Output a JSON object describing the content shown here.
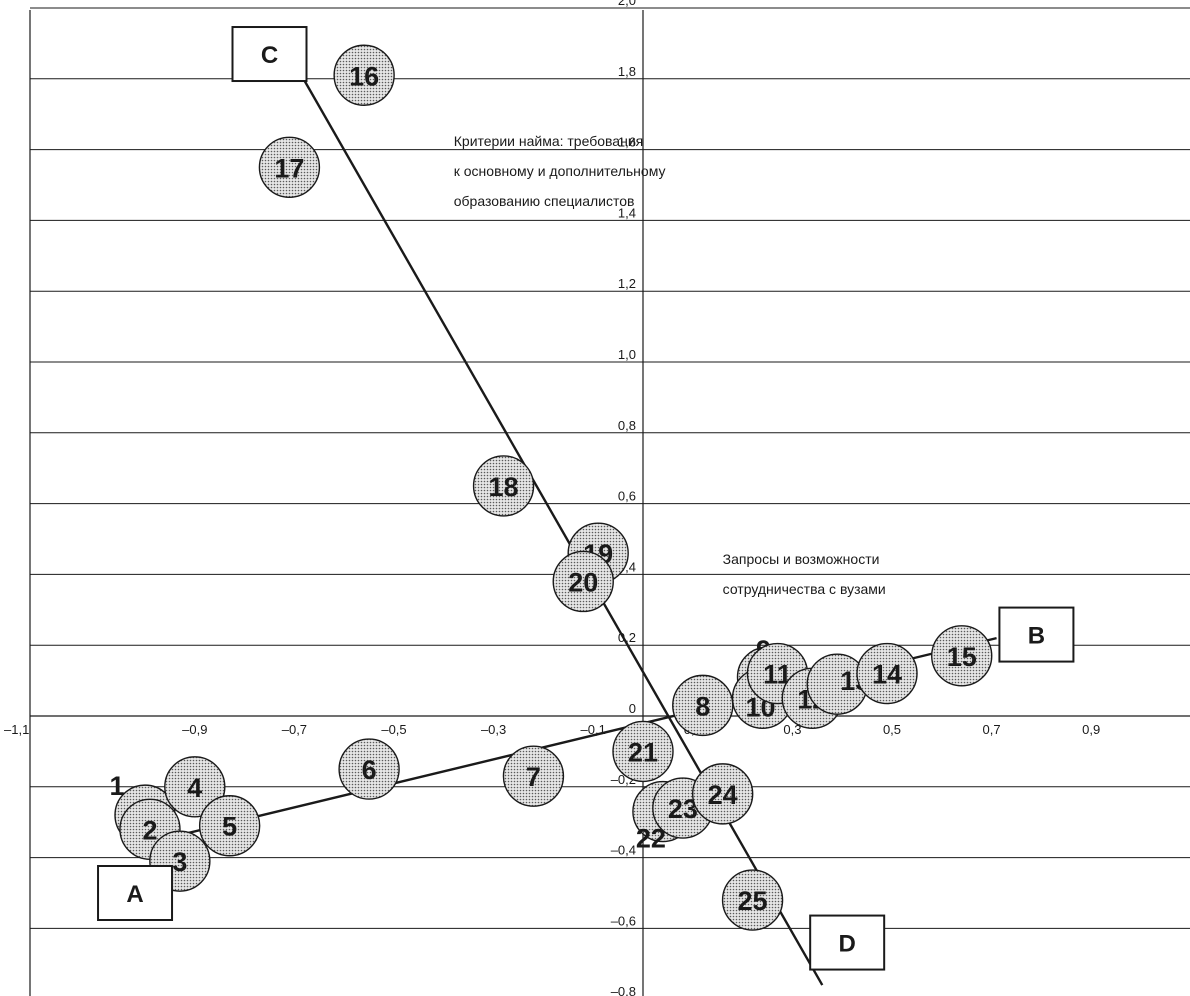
{
  "chart_data": {
    "type": "scatter",
    "title": "",
    "xlabel": "",
    "ylabel": "",
    "xlim": [
      -1.1,
      1.0
    ],
    "ylim": [
      -0.8,
      2.0
    ],
    "grid": "horizontal",
    "x_ticks": [
      "–1,1",
      "–0,9",
      "–0,7",
      "–0,5",
      "–0,3",
      "–0,1",
      "0,1",
      "0,3",
      "0,5",
      "0,7",
      "0,9"
    ],
    "x_tick_values": [
      -1.1,
      -0.9,
      -0.7,
      -0.5,
      -0.3,
      -0.1,
      0.1,
      0.3,
      0.5,
      0.7,
      0.9
    ],
    "y_ticks": [
      "–0,8",
      "–0,6",
      "–0,4",
      "–0,2",
      "0",
      "0,2",
      "0,4",
      "0,6",
      "0,8",
      "1,0",
      "1,2",
      "1,4",
      "1,6",
      "1,8",
      "2,0"
    ],
    "y_tick_values": [
      -0.8,
      -0.6,
      -0.4,
      -0.2,
      0,
      0.2,
      0.4,
      0.6,
      0.8,
      1.0,
      1.2,
      1.4,
      1.6,
      1.8,
      2.0
    ],
    "points": [
      {
        "label": "1",
        "x": -1.0,
        "y": -0.28
      },
      {
        "label": "2",
        "x": -0.99,
        "y": -0.32
      },
      {
        "label": "3",
        "x": -0.93,
        "y": -0.41
      },
      {
        "label": "4",
        "x": -0.9,
        "y": -0.2
      },
      {
        "label": "5",
        "x": -0.83,
        "y": -0.31
      },
      {
        "label": "6",
        "x": -0.55,
        "y": -0.15
      },
      {
        "label": "7",
        "x": -0.22,
        "y": -0.17
      },
      {
        "label": "8",
        "x": 0.12,
        "y": 0.03
      },
      {
        "label": "9",
        "x": 0.25,
        "y": 0.11
      },
      {
        "label": "10",
        "x": 0.24,
        "y": 0.05
      },
      {
        "label": "11",
        "x": 0.27,
        "y": 0.12
      },
      {
        "label": "12",
        "x": 0.34,
        "y": 0.05
      },
      {
        "label": "13",
        "x": 0.39,
        "y": 0.09
      },
      {
        "label": "14",
        "x": 0.49,
        "y": 0.12
      },
      {
        "label": "15",
        "x": 0.64,
        "y": 0.17
      },
      {
        "label": "16",
        "x": -0.56,
        "y": 1.81
      },
      {
        "label": "17",
        "x": -0.71,
        "y": 1.55
      },
      {
        "label": "18",
        "x": -0.28,
        "y": 0.65
      },
      {
        "label": "19",
        "x": -0.09,
        "y": 0.46
      },
      {
        "label": "20",
        "x": -0.12,
        "y": 0.38
      },
      {
        "label": "21",
        "x": -0.0,
        "y": -0.1
      },
      {
        "label": "22",
        "x": 0.04,
        "y": -0.27
      },
      {
        "label": "23",
        "x": 0.08,
        "y": -0.26
      },
      {
        "label": "24",
        "x": 0.16,
        "y": -0.22
      },
      {
        "label": "25",
        "x": 0.22,
        "y": -0.52
      }
    ],
    "lines": [
      {
        "name": "A–B",
        "from": [
          -1.03,
          -0.37
        ],
        "to": [
          0.71,
          0.22
        ]
      },
      {
        "name": "C–D",
        "from": [
          -0.69,
          1.82
        ],
        "to": [
          0.36,
          -0.76
        ]
      }
    ],
    "boxes": [
      {
        "label": "A",
        "x": -1.02,
        "y": -0.5
      },
      {
        "label": "B",
        "x": 0.79,
        "y": 0.23
      },
      {
        "label": "C",
        "x": -0.75,
        "y": 1.87
      },
      {
        "label": "D",
        "x": 0.41,
        "y": -0.64
      }
    ],
    "annotations": [
      {
        "lines": [
          "Критерии найма: требования",
          "к основному и дополнительному",
          "образованию специалистов"
        ],
        "x": -0.38,
        "y": 1.61
      },
      {
        "lines": [
          "Запросы и возможности",
          "сотрудничества с вузами"
        ],
        "x": 0.16,
        "y": 0.43
      }
    ]
  }
}
